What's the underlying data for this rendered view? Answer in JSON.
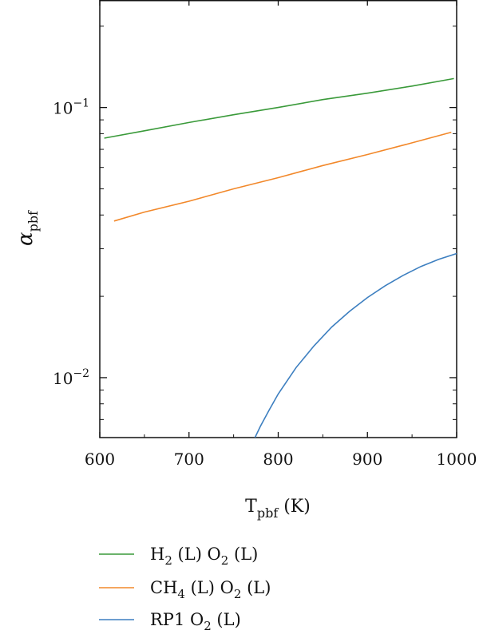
{
  "chart_data": {
    "type": "line",
    "xlabel": {
      "main": "T",
      "sub": "pbf",
      "unit": " (K)"
    },
    "ylabel": {
      "main": "α",
      "sub": "pbf"
    },
    "xlim": [
      600,
      1000
    ],
    "ylim": [
      0.006,
      0.25
    ],
    "yscale": "log",
    "xticks": [
      600,
      700,
      800,
      900,
      1000
    ],
    "xtick_labels": [
      "600",
      "700",
      "800",
      "900",
      "1000"
    ],
    "yticks": [
      {
        "value": 0.01,
        "base": "10",
        "exp": "−2"
      },
      {
        "value": 0.1,
        "base": "10",
        "exp": "−1"
      }
    ],
    "grid": false,
    "legend_position": "below",
    "series": [
      {
        "name": "H2 (L) O2 (L)",
        "legend": [
          {
            "t": "H"
          },
          {
            "t": "2",
            "sub": true
          },
          {
            "t": " (L) O"
          },
          {
            "t": "2",
            "sub": true
          },
          {
            "t": " (L)"
          }
        ],
        "color": "#3a9a3a",
        "x": [
          605,
          650,
          700,
          750,
          800,
          850,
          900,
          950,
          997
        ],
        "y": [
          0.077,
          0.082,
          0.088,
          0.094,
          0.1,
          0.107,
          0.113,
          0.12,
          0.128
        ]
      },
      {
        "name": "CH4 (L) O2 (L)",
        "legend": [
          {
            "t": "CH"
          },
          {
            "t": "4",
            "sub": true
          },
          {
            "t": " (L) O"
          },
          {
            "t": "2",
            "sub": true
          },
          {
            "t": " (L)"
          }
        ],
        "color": "#f2882a",
        "x": [
          616,
          650,
          700,
          750,
          800,
          850,
          900,
          950,
          994
        ],
        "y": [
          0.038,
          0.041,
          0.045,
          0.05,
          0.055,
          0.061,
          0.067,
          0.074,
          0.081
        ]
      },
      {
        "name": "RP1 O2 (L)",
        "legend": [
          {
            "t": "RP1 O"
          },
          {
            "t": "2",
            "sub": true
          },
          {
            "t": " (L)"
          }
        ],
        "color": "#3d7fc0",
        "x": [
          774,
          780,
          790,
          800,
          820,
          840,
          860,
          880,
          900,
          920,
          940,
          960,
          980,
          1000
        ],
        "y": [
          0.006,
          0.0066,
          0.0076,
          0.0087,
          0.0109,
          0.0131,
          0.0154,
          0.0176,
          0.0198,
          0.0219,
          0.0239,
          0.0258,
          0.0274,
          0.0288
        ]
      }
    ]
  }
}
